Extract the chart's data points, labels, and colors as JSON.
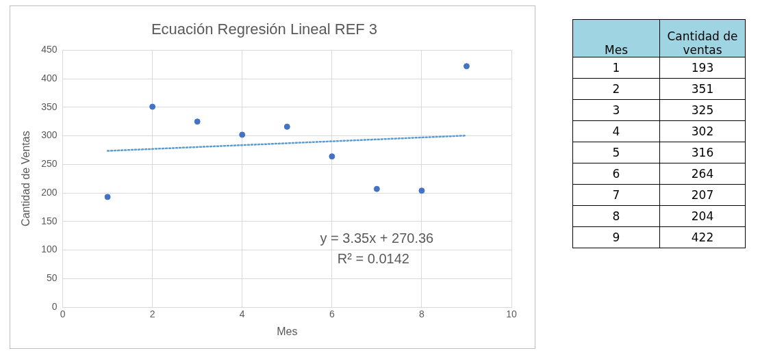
{
  "chart_data": [
    {
      "type": "scatter",
      "title": "Ecuación Regresión Lineal REF 3",
      "xlabel": "Mes",
      "ylabel": "Cantidad de Ventas",
      "x": [
        1,
        2,
        3,
        4,
        5,
        6,
        7,
        8,
        9
      ],
      "series": [
        {
          "type": "scatter",
          "color": "#4472c4",
          "values": [
            193,
            351,
            325,
            302,
            316,
            264,
            207,
            204,
            422
          ]
        },
        {
          "type": "line",
          "color": "#5b9bd5",
          "x": [
            1,
            9
          ],
          "values": [
            273.7,
            300.5
          ],
          "line_style": "dotted",
          "marker": "none"
        }
      ],
      "xlim": [
        0,
        10
      ],
      "xticks": [
        0,
        2,
        4,
        6,
        8,
        10
      ],
      "ylim": [
        0,
        450
      ],
      "yticks": [
        0,
        50,
        100,
        150,
        200,
        250,
        300,
        350,
        400,
        450
      ],
      "grid": true,
      "legend": false,
      "marker": "circle",
      "annotations": [
        "y = 3.35x + 270.36",
        "R² = 0.0142"
      ]
    },
    {
      "type": "heatmap",
      "ylabel": "Mes",
      "categories": [
        "Cantidad de ventas"
      ],
      "y_categories": [
        "1",
        "2",
        "3",
        "4",
        "5",
        "6",
        "7",
        "8",
        "9"
      ],
      "cells": [
        [
          193
        ],
        [
          351
        ],
        [
          325
        ],
        [
          302
        ],
        [
          316
        ],
        [
          264
        ],
        [
          207
        ],
        [
          204
        ],
        [
          422
        ]
      ],
      "data_labels": true
    }
  ]
}
